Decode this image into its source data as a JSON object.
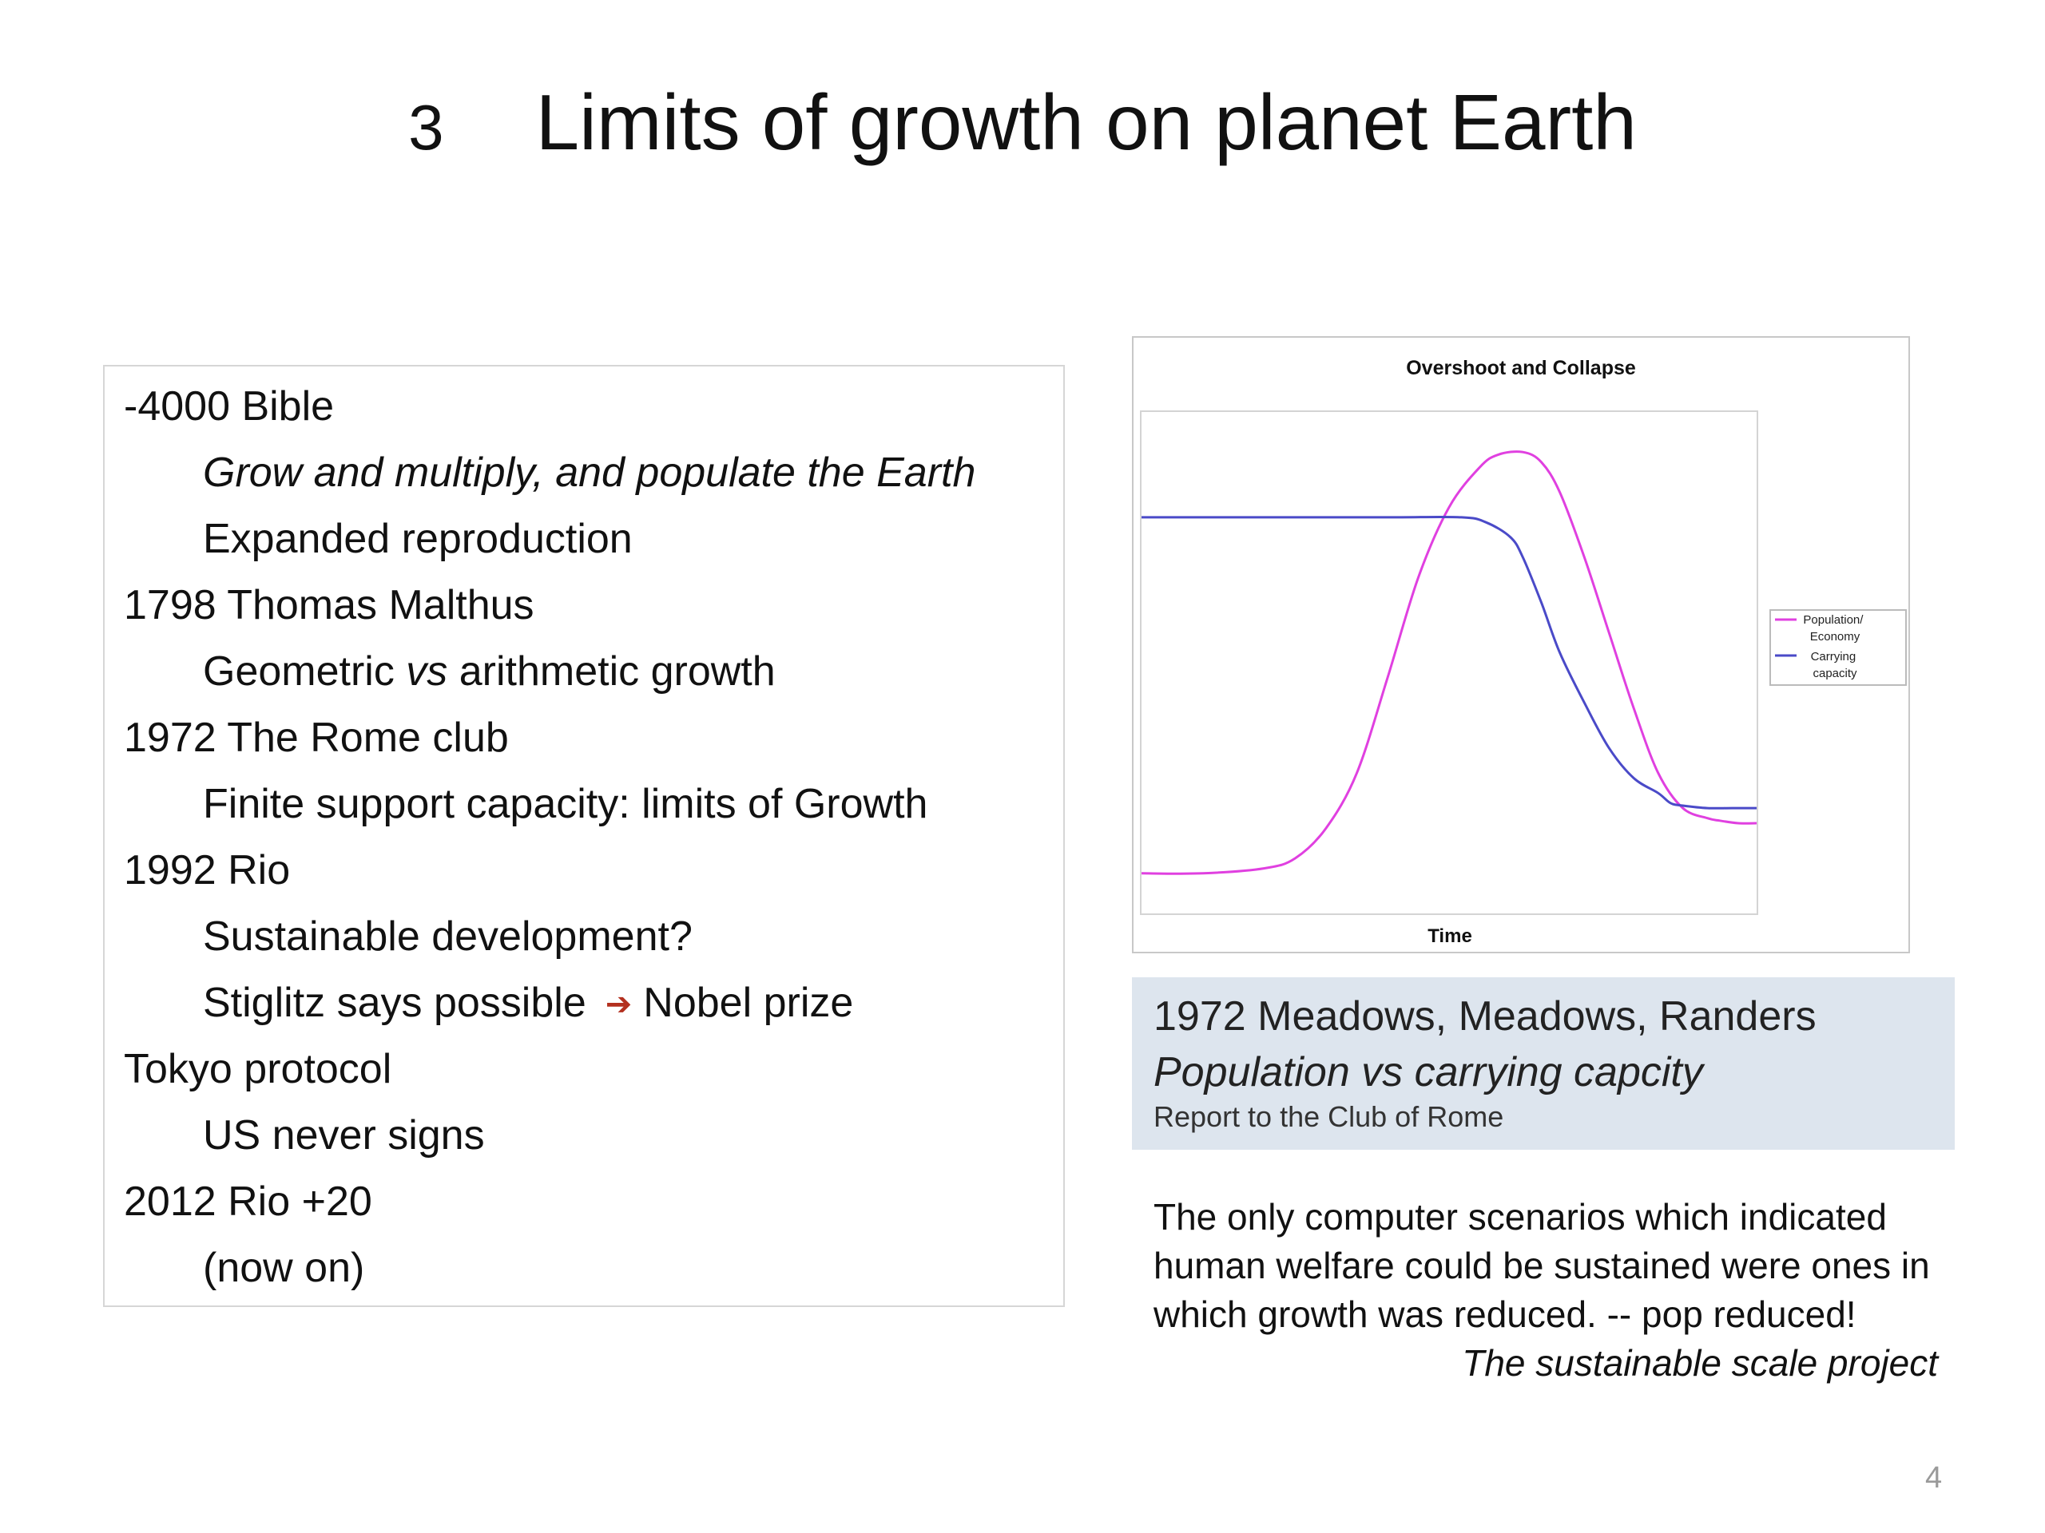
{
  "slide": {
    "number": "3",
    "title": "Limits of growth on planet Earth",
    "page_number": "4"
  },
  "timeline": {
    "rows": [
      {
        "text": "-4000  Bible"
      },
      {
        "text": "Grow and multiply, and populate the Earth"
      },
      {
        "text": "Expanded reproduction"
      },
      {
        "text": "1798 Thomas Malthus"
      },
      {
        "pre": "Geometric ",
        "em": "vs",
        "post": " arithmetic growth"
      },
      {
        "text": "1972 The Rome club"
      },
      {
        "text": "Finite support capacity: limits of Growth"
      },
      {
        "text": "1992 Rio"
      },
      {
        "text": "Sustainable development?"
      },
      {
        "pre": "Stiglitz says possible",
        "arrow": "➔",
        "post": "Nobel prize"
      },
      {
        "text": "Tokyo protocol"
      },
      {
        "text": "US  never signs"
      },
      {
        "text": "2012 Rio +20"
      },
      {
        "text": "(now on)"
      }
    ]
  },
  "chart_data": {
    "type": "line",
    "title": "Overshoot and Collapse",
    "xlabel": "Time",
    "ylabel": "",
    "xlim": [
      0,
      100
    ],
    "ylim": [
      0,
      100
    ],
    "grid": false,
    "legend_position": "right",
    "series": [
      {
        "name": "Population/ Economy",
        "color": "#e040e0",
        "x": [
          0,
          10,
          20,
          25,
          30,
          35,
          40,
          45,
          50,
          55,
          58,
          62,
          65,
          68,
          72,
          76,
          80,
          84,
          88,
          92,
          94,
          97,
          100
        ],
        "y": [
          8,
          8,
          9,
          11,
          17,
          28,
          47,
          67,
          81,
          89,
          91.5,
          92,
          90,
          84,
          71,
          56,
          41,
          28,
          21,
          19,
          18.5,
          18,
          18
        ]
      },
      {
        "name": "Carrying capacity",
        "color": "#4a4ac8",
        "x": [
          0,
          20,
          40,
          52,
          56,
          60,
          62,
          65,
          68,
          72,
          76,
          80,
          84,
          86,
          88,
          92,
          96,
          100
        ],
        "y": [
          79,
          79,
          79,
          79,
          78,
          75,
          71,
          62,
          52,
          42,
          33,
          27,
          24,
          22,
          21.5,
          21,
          21,
          21
        ]
      }
    ]
  },
  "caption": {
    "line1": "1972 Meadows, Meadows, Randers",
    "line2": "Population vs carrying capcity",
    "line3": "Report to the Club of Rome"
  },
  "quote": {
    "lines": [
      "The only computer scenarios which indicated",
      "human welfare could be sustained were ones in",
      "which growth was reduced.  -- pop reduced!"
    ],
    "source": "The sustainable scale project"
  }
}
